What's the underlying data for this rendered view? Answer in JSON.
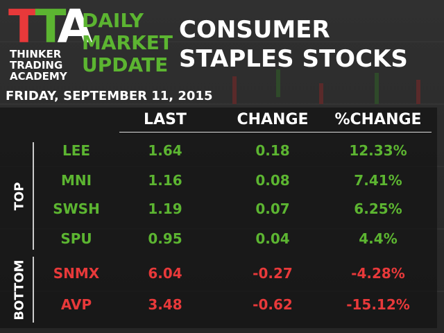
{
  "header": {
    "logo": [
      "T",
      "T",
      "A"
    ],
    "logo_text": [
      "THINKER",
      "TRADING",
      "ACADEMY"
    ],
    "series_title": [
      "DAILY",
      "MARKET",
      "UPDATE"
    ],
    "title": [
      "CONSUMER",
      "STAPLES STOCKS"
    ],
    "date": "FRIDAY, SEPTEMBER 11, 2015"
  },
  "table": {
    "columns": [
      "LAST",
      "CHANGE",
      "%CHANGE"
    ],
    "groups": [
      {
        "label": "TOP",
        "rows": [
          [
            "LEE",
            "1.64",
            "0.18",
            "12.33%"
          ],
          [
            "MNI",
            "1.16",
            "0.08",
            "7.41%"
          ],
          [
            "SWSH",
            "1.19",
            "0.07",
            "6.25%"
          ],
          [
            "SPU",
            "0.95",
            "0.04",
            "4.4%"
          ]
        ]
      },
      {
        "label": "BOTTOM",
        "rows": [
          [
            "SNMX",
            "6.04",
            "-0.27",
            "-4.28%"
          ],
          [
            "AVP",
            "3.48",
            "-0.62",
            "-15.12%"
          ]
        ]
      }
    ]
  }
}
